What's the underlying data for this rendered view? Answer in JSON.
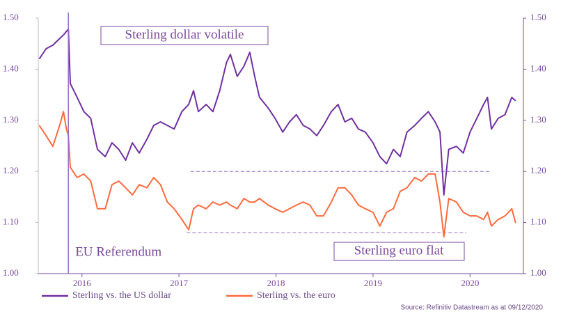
{
  "chart_data": {
    "type": "line",
    "annotations": [
      "Sterling dollar volatile",
      "Sterling euro flat"
    ],
    "events": [
      {
        "x": 2015.86,
        "label": "EU Referendum"
      }
    ],
    "reference_lines": [
      {
        "value": 1.2,
        "x": [
          2017.12,
          2020.22
        ]
      },
      {
        "value": 1.08,
        "x": [
          2017.08,
          2019.96
        ]
      }
    ],
    "source": "Source: Refinitiv Datastream as at 09/12/2020",
    "x": [
      2015.56,
      2015.63,
      2015.7,
      2015.77,
      2015.81,
      2015.84,
      2015.86,
      2015.88,
      2015.95,
      2016.02,
      2016.09,
      2016.16,
      2016.24,
      2016.31,
      2016.38,
      2016.45,
      2016.52,
      2016.59,
      2016.67,
      2016.74,
      2016.81,
      2016.88,
      2016.95,
      2017.03,
      2017.1,
      2017.15,
      2017.2,
      2017.28,
      2017.35,
      2017.42,
      2017.49,
      2017.53,
      2017.6,
      2017.67,
      2017.73,
      2017.78,
      2017.83,
      2017.92,
      2017.99,
      2018.07,
      2018.14,
      2018.21,
      2018.28,
      2018.35,
      2018.42,
      2018.49,
      2018.57,
      2018.64,
      2018.71,
      2018.78,
      2018.85,
      2018.92,
      2019.0,
      2019.07,
      2019.14,
      2019.21,
      2019.28,
      2019.35,
      2019.43,
      2019.5,
      2019.57,
      2019.64,
      2019.69,
      2019.73,
      2019.78,
      2019.86,
      2019.93,
      2020.0,
      2020.07,
      2020.14,
      2020.18,
      2020.22,
      2020.29,
      2020.36,
      2020.43,
      2020.47
    ],
    "series": [
      {
        "name": "Sterling vs. the US dollar",
        "color": "#7030a0",
        "values": [
          1.42,
          1.44,
          1.447,
          1.46,
          1.467,
          1.474,
          1.478,
          1.372,
          1.345,
          1.317,
          1.304,
          1.243,
          1.229,
          1.256,
          1.243,
          1.222,
          1.256,
          1.236,
          1.263,
          1.29,
          1.297,
          1.29,
          1.283,
          1.317,
          1.331,
          1.358,
          1.317,
          1.331,
          1.317,
          1.358,
          1.413,
          1.429,
          1.386,
          1.406,
          1.433,
          1.386,
          1.345,
          1.324,
          1.304,
          1.277,
          1.297,
          1.311,
          1.29,
          1.283,
          1.27,
          1.29,
          1.317,
          1.331,
          1.297,
          1.304,
          1.283,
          1.277,
          1.256,
          1.229,
          1.215,
          1.243,
          1.229,
          1.277,
          1.29,
          1.304,
          1.317,
          1.297,
          1.277,
          1.154,
          1.243,
          1.249,
          1.236,
          1.277,
          1.304,
          1.331,
          1.345,
          1.283,
          1.304,
          1.311,
          1.345,
          1.338
        ]
      },
      {
        "name": "Sterling vs. the euro",
        "color": "#ff6a3d",
        "values": [
          1.29,
          1.27,
          1.249,
          1.29,
          1.317,
          1.283,
          1.27,
          1.208,
          1.188,
          1.195,
          1.181,
          1.127,
          1.127,
          1.174,
          1.181,
          1.168,
          1.154,
          1.174,
          1.168,
          1.188,
          1.174,
          1.14,
          1.127,
          1.106,
          1.086,
          1.127,
          1.134,
          1.127,
          1.14,
          1.134,
          1.14,
          1.134,
          1.127,
          1.147,
          1.14,
          1.14,
          1.147,
          1.134,
          1.127,
          1.12,
          1.127,
          1.134,
          1.14,
          1.134,
          1.113,
          1.113,
          1.14,
          1.168,
          1.168,
          1.154,
          1.134,
          1.127,
          1.12,
          1.093,
          1.12,
          1.127,
          1.161,
          1.168,
          1.188,
          1.181,
          1.195,
          1.195,
          1.14,
          1.072,
          1.147,
          1.14,
          1.12,
          1.113,
          1.113,
          1.106,
          1.12,
          1.093,
          1.106,
          1.113,
          1.127,
          1.099
        ]
      }
    ],
    "xlim": [
      2015.55,
      2020.55
    ],
    "xticks": [
      2016,
      2017,
      2018,
      2019,
      2020
    ],
    "ylim": [
      1.0,
      1.5
    ],
    "yticks": [
      {
        "value": 1.0,
        "label": "1.00"
      },
      {
        "value": 1.1,
        "label": "1.10"
      },
      {
        "value": 1.2,
        "label": "1.20"
      },
      {
        "value": 1.3,
        "label": "1.30"
      },
      {
        "value": 1.4,
        "label": "1.40"
      },
      {
        "value": 1.5,
        "label": "1.50"
      }
    ],
    "y2lim": [
      1.0,
      1.5
    ],
    "y2ticks": [
      {
        "value": 1.0,
        "label": "1.00"
      },
      {
        "value": 1.1,
        "label": "1.10"
      },
      {
        "value": 1.2,
        "label": "1.20"
      },
      {
        "value": 1.3,
        "label": "1.30"
      },
      {
        "value": 1.4,
        "label": "1.40"
      },
      {
        "value": 1.5,
        "label": "1.50"
      }
    ]
  }
}
